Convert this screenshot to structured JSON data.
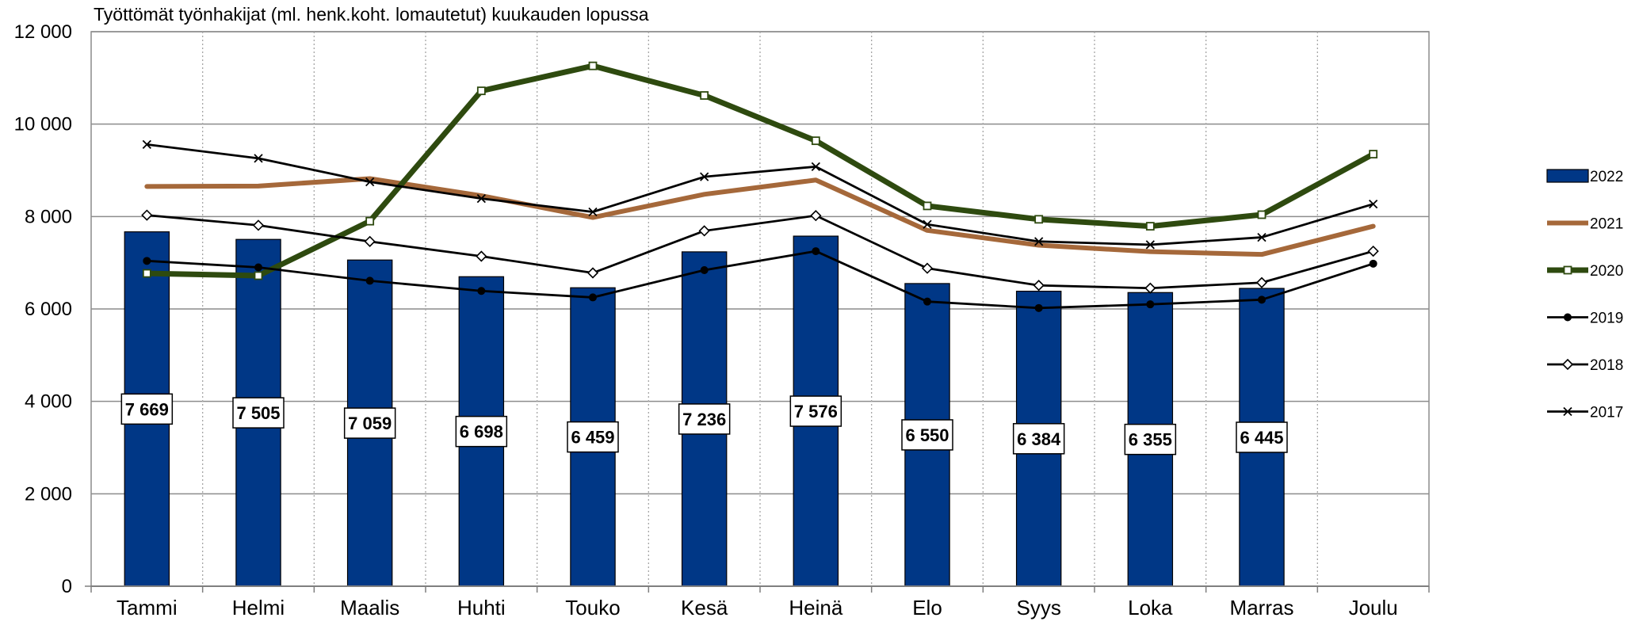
{
  "chart_data": {
    "type": "bar",
    "title": "Työttömät työnhakijat (ml. henk.koht. lomautetut) kuukauden lopussa",
    "xlabel": "",
    "ylabel": "",
    "ylim": [
      0,
      12000
    ],
    "y_ticks": [
      0,
      2000,
      4000,
      6000,
      8000,
      10000,
      12000
    ],
    "y_tick_labels": [
      "0",
      "2 000",
      "4 000",
      "6 000",
      "8 000",
      "10 000",
      "12 000"
    ],
    "grid": true,
    "legend_position": "right",
    "categories": [
      "Tammi",
      "Helmi",
      "Maalis",
      "Huhti",
      "Touko",
      "Kesä",
      "Heinä",
      "Elo",
      "Syys",
      "Loka",
      "Marras",
      "Joulu"
    ],
    "series": [
      {
        "name": "2022",
        "kind": "bar",
        "color": "#003786",
        "values": [
          7669,
          7505,
          7059,
          6698,
          6459,
          7236,
          7576,
          6550,
          6384,
          6355,
          6445,
          null
        ],
        "labels": [
          "7 669",
          "7 505",
          "7 059",
          "6 698",
          "6 459",
          "7 236",
          "7 576",
          "6 550",
          "6 384",
          "6 355",
          "6 445",
          ""
        ]
      },
      {
        "name": "2021",
        "kind": "line",
        "color": "#A5683A",
        "marker": "none",
        "values": [
          8650,
          8660,
          8820,
          8450,
          7980,
          8480,
          8790,
          7700,
          7380,
          7240,
          7180,
          7790
        ]
      },
      {
        "name": "2020",
        "kind": "line",
        "color": "#2E4A0F",
        "marker": "square",
        "values": [
          6770,
          6720,
          7900,
          10720,
          11260,
          10620,
          9640,
          8230,
          7940,
          7790,
          8040,
          9350
        ]
      },
      {
        "name": "2019",
        "kind": "line",
        "color": "#000000",
        "marker": "dot",
        "values": [
          7040,
          6900,
          6610,
          6390,
          6250,
          6840,
          7250,
          6160,
          6020,
          6100,
          6200,
          6980
        ]
      },
      {
        "name": "2018",
        "kind": "line",
        "color": "#000000",
        "marker": "diamond",
        "values": [
          8030,
          7810,
          7460,
          7140,
          6780,
          7690,
          8020,
          6880,
          6510,
          6450,
          6570,
          7250
        ]
      },
      {
        "name": "2017",
        "kind": "line",
        "color": "#000000",
        "marker": "x",
        "values": [
          9560,
          9260,
          8750,
          8390,
          8100,
          8860,
          9080,
          7830,
          7460,
          7390,
          7550,
          8270
        ]
      }
    ],
    "legend_order": [
      "2022",
      "2021",
      "2020",
      "2019",
      "2018",
      "2017"
    ]
  }
}
